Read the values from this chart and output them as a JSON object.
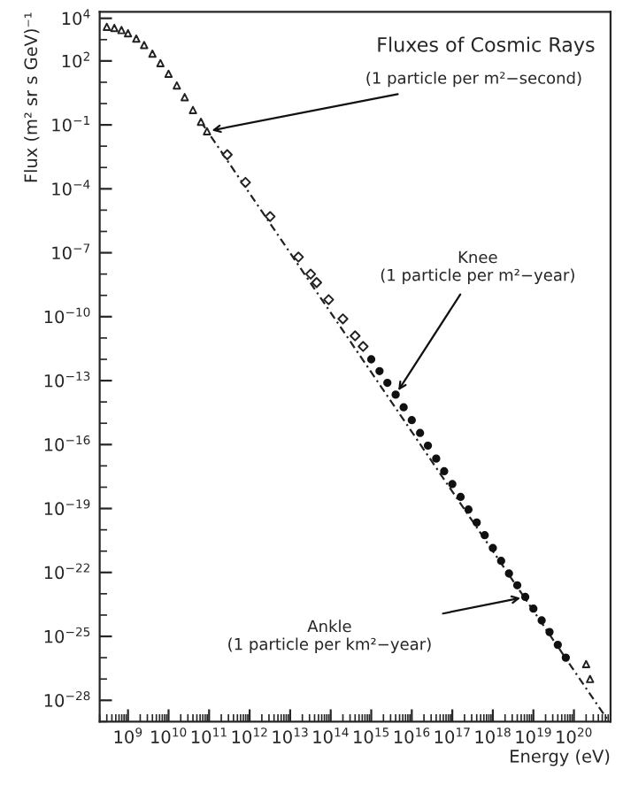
{
  "chart_data": {
    "type": "scatter",
    "title": "Fluxes of Cosmic Rays",
    "xlabel": "Energy (eV)",
    "ylabel": "Flux (m² sr s GeV)⁻¹",
    "log": "xy",
    "grid": false,
    "xlim": [
      200000000.0,
      8e+20
    ],
    "ylim": [
      1e-29,
      20000.0
    ],
    "xticks": [
      {
        "value": 1000000000.0,
        "label": "10$^{9}$"
      },
      {
        "value": 10000000000.0,
        "label": "10$^{10}$"
      },
      {
        "value": 100000000000.0,
        "label": "10$^{11}$"
      },
      {
        "value": 1000000000000.0,
        "label": "10$^{12}$"
      },
      {
        "value": 10000000000000.0,
        "label": "10$^{13}$"
      },
      {
        "value": 100000000000000.0,
        "label": "10$^{14}$"
      },
      {
        "value": 1000000000000000.0,
        "label": "10$^{15}$"
      },
      {
        "value": 1e+16,
        "label": "10$^{16}$"
      },
      {
        "value": 1e+17,
        "label": "10$^{17}$"
      },
      {
        "value": 1e+18,
        "label": "10$^{18}$"
      },
      {
        "value": 1e+19,
        "label": "10$^{19}$"
      },
      {
        "value": 1e+20,
        "label": "10$^{20}$"
      }
    ],
    "yticks": [
      {
        "value": 10000.0,
        "label": "10$^{4}$"
      },
      {
        "value": 100.0,
        "label": "10$^{2}$"
      },
      {
        "value": 0.1,
        "label": "10$^{−1}$"
      },
      {
        "value": 0.0001,
        "label": "10$^{−4}$"
      },
      {
        "value": 1e-07,
        "label": "10$^{−7}$"
      },
      {
        "value": 1e-10,
        "label": "10$^{−10}$"
      },
      {
        "value": 1e-13,
        "label": "10$^{−13}$"
      },
      {
        "value": 1e-16,
        "label": "10$^{−16}$"
      },
      {
        "value": 1e-19,
        "label": "10$^{−19}$"
      },
      {
        "value": 1e-22,
        "label": "10$^{−22}$"
      },
      {
        "value": 1e-25,
        "label": "10$^{−25}$"
      },
      {
        "value": 1e-28,
        "label": "10$^{−28}$"
      }
    ],
    "series": [
      {
        "marker": "triangle",
        "color": "#222222",
        "x": [
          300000000.0,
          460000000.0,
          690000000.0,
          1000000000.0,
          1600000000.0,
          2500000000.0,
          4000000000.0,
          6300000000.0,
          10000000000.0,
          16000000000.0,
          25000000000.0,
          40000000000.0,
          63000000000.0,
          89000000000.0
        ],
        "values": [
          3980.0,
          3550.0,
          2820.0,
          2000.0,
          1120.0,
          560.0,
          220.0,
          79,
          25,
          7.1,
          2.0,
          0.5,
          0.14,
          0.05
        ]
      },
      {
        "marker": "diamond",
        "color": "#222222",
        "x": [
          280000000000.0,
          790000000000.0,
          3200000000000.0,
          16000000000000.0,
          32000000000000.0,
          45000000000000.0,
          89000000000000.0,
          200000000000000.0,
          400000000000000.0,
          630000000000000.0
        ],
        "values": [
          0.004,
          0.0002,
          5e-06,
          6.3e-08,
          1e-08,
          4e-09,
          6.3e-10,
          7.9e-11,
          1.26e-11,
          4e-12
        ]
      },
      {
        "marker": "circle",
        "color": "#111111",
        "x": [
          1000000000000000.0,
          1600000000000000.0,
          2500000000000000.0,
          4000000000000000.0,
          6300000000000000.0,
          1e+16,
          1.6e+16,
          2.5e+16,
          4e+16,
          6.3e+16,
          1e+17,
          1.6e+17,
          2.5e+17,
          4e+17,
          6.3e+17,
          1e+18,
          1.6e+18,
          2.5e+18,
          4e+18,
          6.3e+18,
          1e+19,
          1.6e+19,
          2.5e+19,
          4e+19,
          6.3e+19
        ],
        "values": [
          1e-12,
          2.8e-13,
          7.9e-14,
          2.2e-14,
          5.6e-15,
          1.4e-15,
          3.5e-16,
          8.9e-17,
          2.2e-17,
          5.6e-18,
          1.4e-18,
          3.5e-19,
          8.9e-20,
          2.2e-20,
          5.6e-21,
          1.4e-21,
          3.5e-22,
          8.9e-23,
          2.5e-23,
          7.1e-24,
          2e-24,
          5.6e-25,
          1.6e-25,
          4e-26,
          1e-26
        ]
      },
      {
        "marker": "triangle",
        "color": "#222222",
        "x": [
          2e+20,
          2.5e+20
        ],
        "values": [
          5e-27,
          1e-27
        ]
      },
      {
        "type": "line",
        "line_style": "dashed",
        "color": "#222222",
        "x": [
          63000000000.0,
          7e+20
        ],
        "values": [
          0.14,
          1.1e-29
        ]
      }
    ],
    "annotations": [
      {
        "text": "(1 particle per m²−second)",
        "x": 89000000000.0,
        "y": 0.05
      },
      {
        "text": "Knee\n(1 particle per m²−year)",
        "x": 4000000000000000.0,
        "y": 2.2e-14
      },
      {
        "text": "Ankle\n(1 particle per km²−year)",
        "x": 6.3e+18,
        "y": 7.1e-24
      }
    ]
  }
}
